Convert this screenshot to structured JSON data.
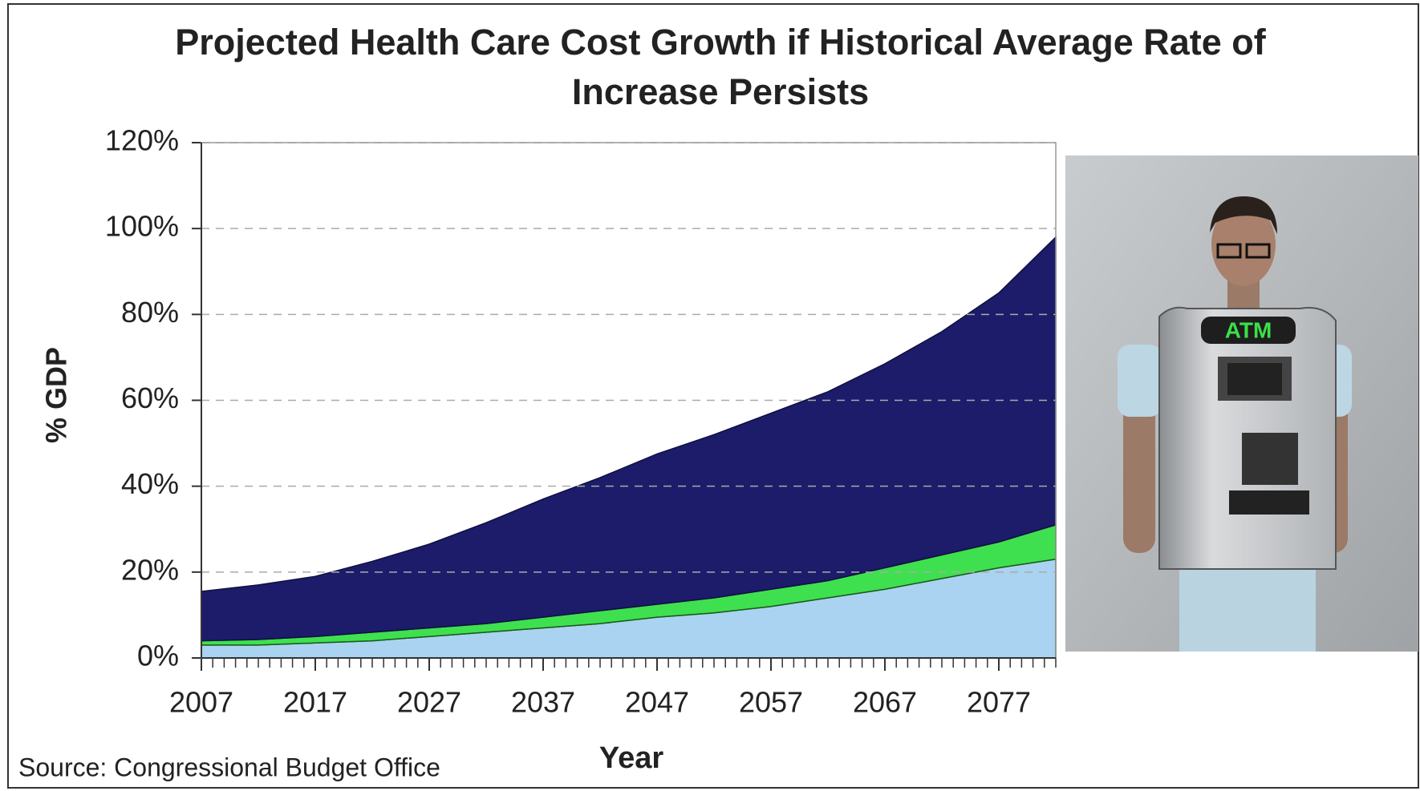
{
  "chart_data": {
    "type": "stacked_area",
    "title": "Projected Health Care Cost Growth if Historical Average Rate of Increase Persists",
    "x_label": "Year",
    "y_label": "% GDP",
    "source": "Source: Congressional  Budget Office",
    "x": [
      2007,
      2012,
      2017,
      2022,
      2027,
      2032,
      2037,
      2042,
      2047,
      2052,
      2057,
      2062,
      2067,
      2072,
      2077,
      2082
    ],
    "series": [
      {
        "color": "#a9d3f0",
        "values": [
          3,
          3,
          3.5,
          4,
          5,
          6,
          7,
          8,
          9.5,
          10.5,
          12,
          14,
          16,
          18.5,
          21,
          23
        ]
      },
      {
        "color": "#3fe04f",
        "values": [
          1,
          1.3,
          1.5,
          2,
          2,
          2,
          2.5,
          3,
          3,
          3.5,
          4,
          4,
          5,
          5.5,
          6,
          8
        ]
      },
      {
        "color": "#1c1c6b",
        "values": [
          11.5,
          12.7,
          14,
          16.5,
          19.5,
          23.5,
          27.5,
          31,
          35,
          38,
          41,
          44,
          47.5,
          52,
          58,
          67
        ]
      }
    ],
    "xlim": [
      2007,
      2082
    ],
    "xticks": [
      2007,
      2017,
      2027,
      2037,
      2047,
      2057,
      2067,
      2077
    ],
    "ylim": [
      0,
      120
    ],
    "yticks": [
      {
        "value": 0,
        "label": "0%"
      },
      {
        "value": 20,
        "label": "20%"
      },
      {
        "value": 40,
        "label": "40%"
      },
      {
        "value": 60,
        "label": "60%"
      },
      {
        "value": 80,
        "label": "80%"
      },
      {
        "value": 100,
        "label": "100%"
      },
      {
        "value": 120,
        "label": "120%"
      }
    ],
    "grid": true
  },
  "image": {
    "sign": "ATM"
  }
}
